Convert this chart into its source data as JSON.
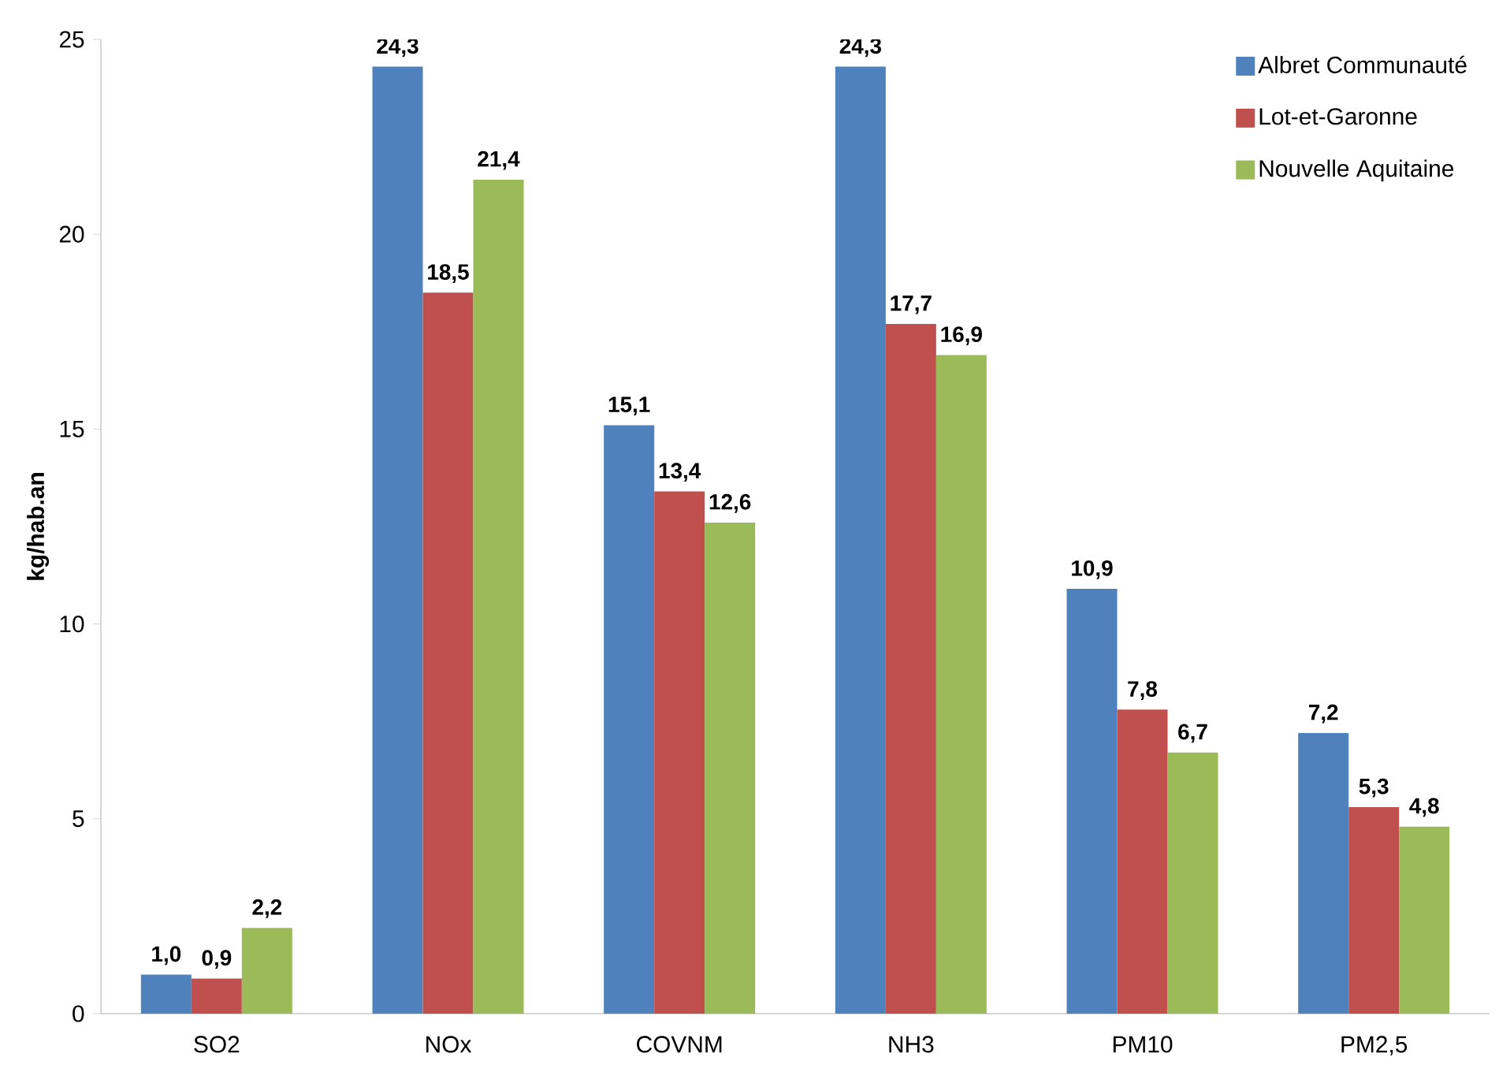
{
  "chart_data": {
    "type": "bar",
    "ylabel": "kg/hab.an",
    "categories": [
      "SO2",
      "NOx",
      "COVNM",
      "NH3",
      "PM10",
      "PM2,5"
    ],
    "series": [
      {
        "name": "Albret Communauté",
        "color": "#4f81bd",
        "values": [
          1.0,
          24.3,
          15.1,
          24.3,
          10.9,
          7.2
        ],
        "value_labels": [
          "1,0",
          "24,3",
          "15,1",
          "24,3",
          "10,9",
          "7,2"
        ]
      },
      {
        "name": "Lot-et-Garonne",
        "color": "#c0504d",
        "values": [
          0.9,
          18.5,
          13.4,
          17.7,
          7.8,
          5.3
        ],
        "value_labels": [
          "0,9",
          "18,5",
          "13,4",
          "17,7",
          "7,8",
          "5,3"
        ]
      },
      {
        "name": "Nouvelle Aquitaine",
        "color": "#9bbb59",
        "values": [
          2.2,
          21.4,
          12.6,
          16.9,
          6.7,
          4.8
        ],
        "value_labels": [
          "2,2",
          "21,4",
          "12,6",
          "16,9",
          "6,7",
          "4,8"
        ]
      }
    ],
    "ylim": [
      0,
      25
    ],
    "yticks": [
      0,
      5,
      10,
      15,
      20,
      25
    ],
    "grid": false,
    "legend": "top right"
  }
}
